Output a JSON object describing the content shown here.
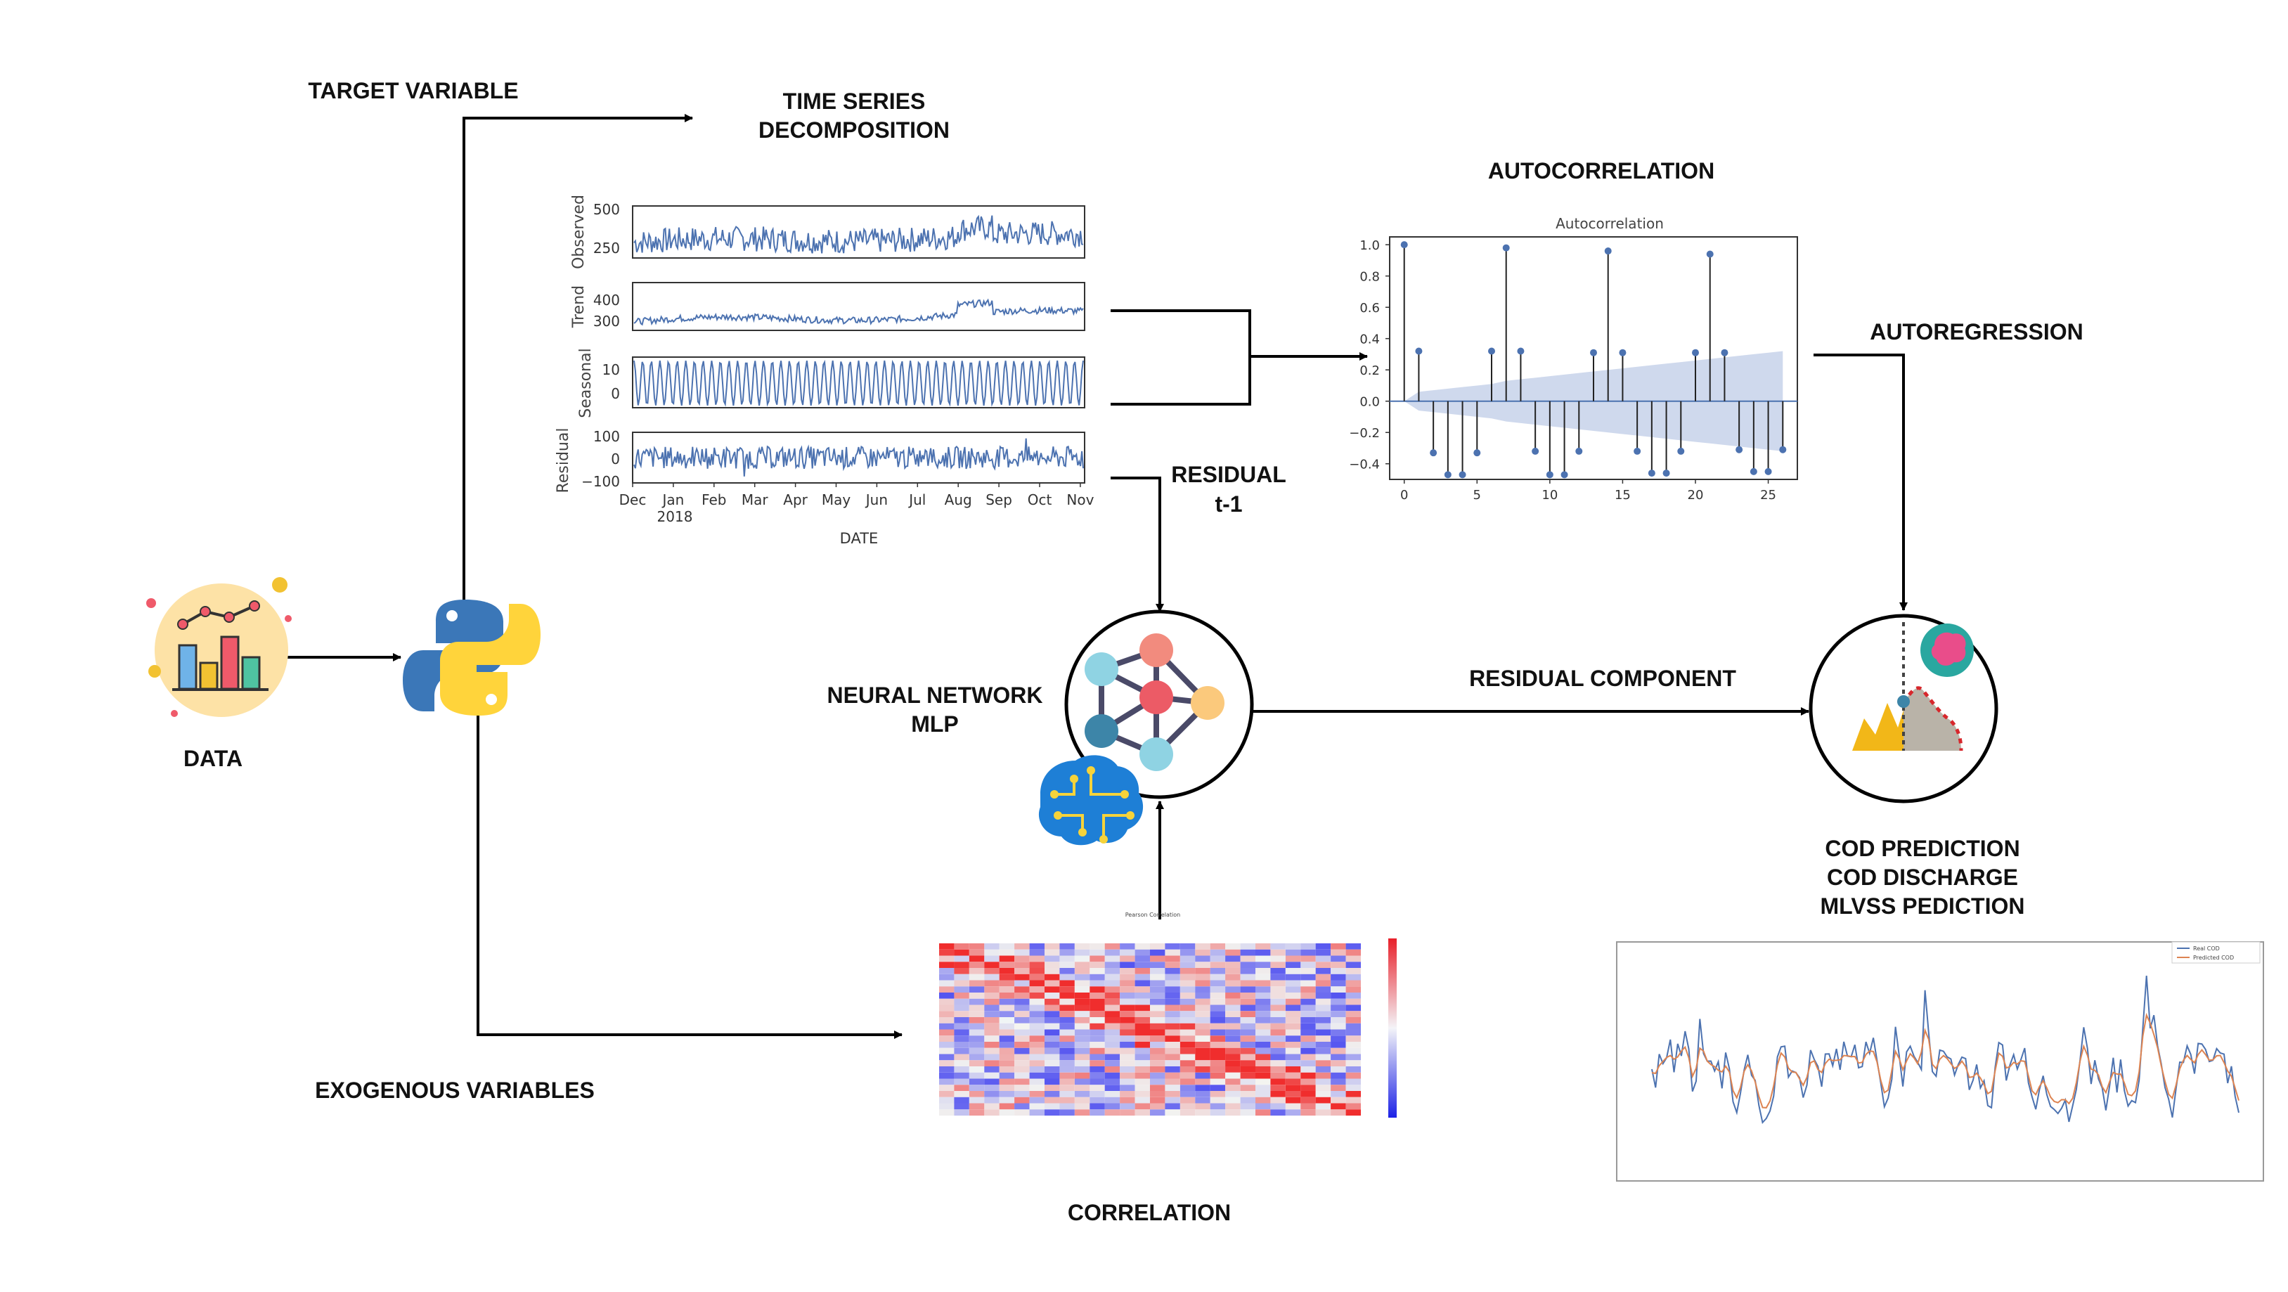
{
  "labels": {
    "target_variable": "TARGET VARIABLE",
    "tsd_line1": "TIME SERIES",
    "tsd_line2": "DECOMPOSITION",
    "autocorrelation": "AUTOCORRELATION",
    "autoregression": "AUTOREGRESSION",
    "residual_line1": "RESIDUAL",
    "residual_line2": "t-1",
    "data": "DATA",
    "nn_line1": "NEURAL NETWORK",
    "nn_line2": "MLP",
    "residual_component": "RESIDUAL COMPONENT",
    "exogenous": "EXOGENOUS VARIABLES",
    "correlation": "CORRELATION",
    "pred_line1": "COD PREDICTION",
    "pred_line2": "COD DISCHARGE",
    "pred_line3": "MLVSS PEDICTION"
  },
  "colors": {
    "series": "#4c72b0",
    "band": "#c7d2ea",
    "orange": "#dd8452",
    "python_blue": "#3b77b8",
    "python_yellow": "#ffd43b"
  },
  "decomposition": {
    "panels": [
      {
        "name": "Observed",
        "ticks": [
          "500",
          "250"
        ]
      },
      {
        "name": "Trend",
        "ticks": [
          "400",
          "300"
        ]
      },
      {
        "name": "Seasonal",
        "ticks": [
          "10",
          "0"
        ]
      },
      {
        "name": "Residual",
        "ticks": [
          "100",
          "0",
          "−100"
        ]
      }
    ],
    "xticks": [
      "Dec",
      "Jan",
      "Feb",
      "Mar",
      "Apr",
      "May",
      "Jun",
      "Jul",
      "Aug",
      "Sep",
      "Oct",
      "Nov"
    ],
    "year": "2018",
    "xlabel": "DATE"
  },
  "chart_data": {
    "type": "stem",
    "title": "Autocorrelation",
    "lags": [
      0,
      1,
      2,
      3,
      4,
      5,
      6,
      7,
      8,
      9,
      10,
      11,
      12,
      13,
      14,
      15,
      16,
      17,
      18,
      19,
      20,
      21,
      22,
      23,
      24,
      25,
      26
    ],
    "values": [
      1.0,
      0.32,
      -0.33,
      -0.47,
      -0.47,
      -0.33,
      0.32,
      0.98,
      0.32,
      -0.32,
      -0.47,
      -0.47,
      -0.32,
      0.31,
      0.96,
      0.31,
      -0.32,
      -0.46,
      -0.46,
      -0.32,
      0.31,
      0.94,
      0.31,
      -0.31,
      -0.45,
      -0.45,
      -0.31
    ],
    "confidence": [
      0.0,
      0.06,
      0.07,
      0.08,
      0.09,
      0.1,
      0.11,
      0.13,
      0.14,
      0.15,
      0.16,
      0.17,
      0.18,
      0.19,
      0.2,
      0.21,
      0.22,
      0.23,
      0.24,
      0.25,
      0.26,
      0.27,
      0.28,
      0.29,
      0.3,
      0.31,
      0.32
    ],
    "yticks": [
      "1.0",
      "0.8",
      "0.6",
      "0.4",
      "0.2",
      "0.0",
      "−0.2",
      "−0.4"
    ],
    "xticks": [
      "0",
      "5",
      "10",
      "15",
      "20",
      "25"
    ],
    "ylim": [
      -0.5,
      1.05
    ],
    "xlim": [
      -1,
      27
    ]
  },
  "correlation": {
    "title": "Pearson Correlation"
  },
  "prediction_chart": {
    "legend": [
      "Real COD",
      "Predicted COD"
    ]
  }
}
